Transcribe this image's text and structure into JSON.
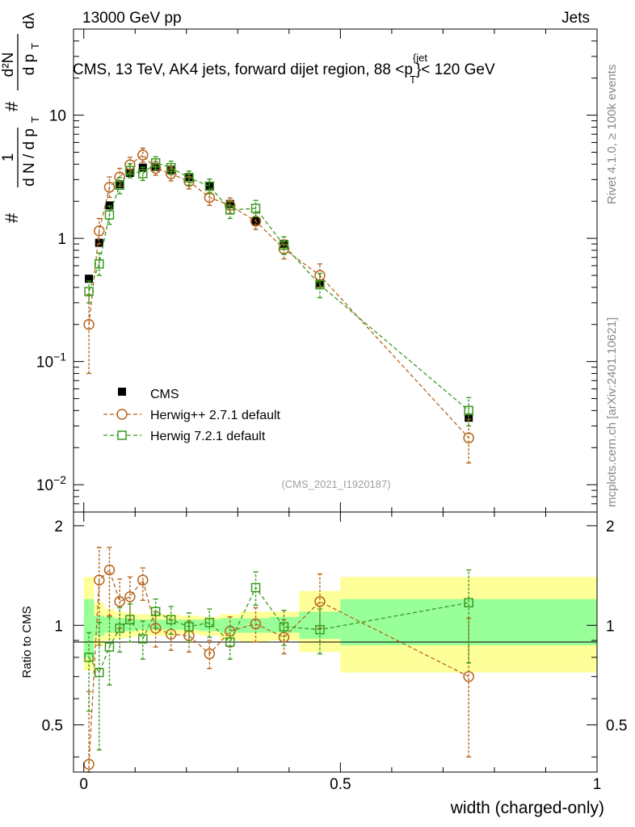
{
  "header": {
    "left": "13000 GeV pp",
    "right": "Jets"
  },
  "side_labels": {
    "rivet": "Rivet 4.1.0, ≥ 100k events",
    "mcplots": "mcplots.cern.ch [arXiv:2401.10621]"
  },
  "chart_data": [
    {
      "type": "scatter",
      "title_main": "CMS, 13 TeV, AK4 jets, forward dijet region, 88 <p",
      "title_sup": "{jet",
      "title_sub": "T",
      "title_end": "}< 120 GeV",
      "analysis_id": "(CMS_2021_I1920187)",
      "ylabel": "1/N dN/dp_T d^2N/(dp_T dlambda)",
      "yscale": "log",
      "xlim": [
        -0.02,
        1.0
      ],
      "ylim": [
        0.006,
        50
      ],
      "ytick_labels": [
        {
          "base": "10",
          "exp": "−2",
          "value": 0.01
        },
        {
          "base": "10",
          "exp": "−1",
          "value": 0.1
        },
        {
          "base": "1",
          "exp": "",
          "value": 1
        },
        {
          "base": "10",
          "exp": "",
          "value": 10
        }
      ],
      "legend": {
        "placement": "middle-left",
        "entries": [
          "CMS",
          "Herwig++ 2.7.1 default",
          "Herwig 7.2.1 default"
        ]
      },
      "series": [
        {
          "name": "CMS",
          "color": "#000000",
          "marker": "filled-square",
          "x": [
            0.01,
            0.03,
            0.05,
            0.07,
            0.09,
            0.115,
            0.14,
            0.17,
            0.205,
            0.245,
            0.285,
            0.335,
            0.39,
            0.46,
            0.75
          ],
          "y": [
            0.47,
            0.92,
            1.85,
            2.75,
            3.4,
            3.75,
            3.8,
            3.6,
            3.15,
            2.65,
            1.9,
            1.38,
            0.9,
            0.43,
            0.035
          ]
        },
        {
          "name": "Herwig++ 2.7.1 default",
          "color": "#b5651d",
          "marker": "open-circle",
          "x": [
            0.01,
            0.03,
            0.05,
            0.07,
            0.09,
            0.115,
            0.14,
            0.17,
            0.205,
            0.245,
            0.285,
            0.335,
            0.39,
            0.46,
            0.75
          ],
          "y": [
            0.2,
            1.15,
            2.6,
            3.15,
            3.95,
            4.75,
            3.7,
            3.35,
            2.9,
            2.15,
            1.85,
            1.38,
            0.82,
            0.5,
            0.024
          ],
          "err_lo": [
            0.12,
            0.25,
            0.45,
            0.5,
            0.55,
            0.6,
            0.45,
            0.42,
            0.38,
            0.3,
            0.25,
            0.2,
            0.14,
            0.1,
            0.009
          ],
          "err_hi": [
            0.15,
            0.3,
            0.55,
            0.55,
            0.6,
            0.65,
            0.5,
            0.45,
            0.42,
            0.32,
            0.28,
            0.22,
            0.15,
            0.12,
            0.01
          ]
        },
        {
          "name": "Herwig 7.2.1 default",
          "color": "#3a9a1f",
          "marker": "open-square",
          "x": [
            0.01,
            0.03,
            0.05,
            0.07,
            0.09,
            0.115,
            0.14,
            0.17,
            0.205,
            0.245,
            0.285,
            0.335,
            0.39,
            0.46,
            0.75
          ],
          "y": [
            0.37,
            0.62,
            1.55,
            2.7,
            3.55,
            3.35,
            4.1,
            3.75,
            3.1,
            2.65,
            1.7,
            1.75,
            0.88,
            0.42,
            0.04
          ],
          "err_lo": [
            0.07,
            0.12,
            0.25,
            0.4,
            0.45,
            0.4,
            0.5,
            0.45,
            0.4,
            0.35,
            0.25,
            0.25,
            0.14,
            0.09,
            0.01
          ],
          "err_hi": [
            0.08,
            0.14,
            0.28,
            0.42,
            0.48,
            0.42,
            0.5,
            0.48,
            0.42,
            0.38,
            0.28,
            0.28,
            0.15,
            0.1,
            0.011
          ]
        }
      ]
    },
    {
      "type": "scatter",
      "title": "Ratio to CMS",
      "ylabel": "Ratio to CMS",
      "xlabel": "width (charged-only)",
      "xlim": [
        -0.02,
        1.0
      ],
      "ylim": [
        0.36,
        2.2
      ],
      "yscale": "log",
      "xtick_labels": [
        "0",
        "0.5",
        "1"
      ],
      "ytick_labels": [
        "0.5",
        "1",
        "2"
      ],
      "bands": {
        "bins": [
          [
            0.0,
            0.02
          ],
          [
            0.02,
            0.04
          ],
          [
            0.04,
            0.06
          ],
          [
            0.06,
            0.08
          ],
          [
            0.08,
            0.1
          ],
          [
            0.1,
            0.13
          ],
          [
            0.13,
            0.155
          ],
          [
            0.155,
            0.185
          ],
          [
            0.185,
            0.225
          ],
          [
            0.225,
            0.265
          ],
          [
            0.265,
            0.305
          ],
          [
            0.305,
            0.36
          ],
          [
            0.36,
            0.42
          ],
          [
            0.42,
            0.5
          ],
          [
            0.5,
            1.0
          ]
        ],
        "green": [
          [
            0.8,
            1.2
          ],
          [
            0.93,
            1.07
          ],
          [
            0.95,
            1.06
          ],
          [
            0.96,
            1.05
          ],
          [
            0.96,
            1.05
          ],
          [
            0.97,
            1.04
          ],
          [
            0.97,
            1.04
          ],
          [
            0.97,
            1.04
          ],
          [
            0.97,
            1.04
          ],
          [
            0.96,
            1.04
          ],
          [
            0.95,
            1.05
          ],
          [
            0.95,
            1.05
          ],
          [
            0.95,
            1.06
          ],
          [
            0.91,
            1.1
          ],
          [
            0.87,
            1.2
          ]
        ],
        "yellow": [
          [
            0.73,
            1.4
          ],
          [
            0.87,
            1.17
          ],
          [
            0.9,
            1.12
          ],
          [
            0.91,
            1.1
          ],
          [
            0.92,
            1.09
          ],
          [
            0.93,
            1.08
          ],
          [
            0.93,
            1.08
          ],
          [
            0.93,
            1.08
          ],
          [
            0.94,
            1.07
          ],
          [
            0.93,
            1.06
          ],
          [
            0.9,
            1.08
          ],
          [
            0.89,
            1.1
          ],
          [
            0.9,
            1.1
          ],
          [
            0.83,
            1.27
          ],
          [
            0.72,
            1.4
          ]
        ]
      },
      "series": [
        {
          "name": "Herwig++ 2.7.1 default",
          "color": "#b5651d",
          "x": [
            0.01,
            0.03,
            0.05,
            0.07,
            0.09,
            0.115,
            0.14,
            0.17,
            0.205,
            0.245,
            0.285,
            0.335,
            0.39,
            0.46,
            0.75
          ],
          "y": [
            0.38,
            1.37,
            1.47,
            1.18,
            1.22,
            1.37,
            0.98,
            0.94,
            0.93,
            0.82,
            0.96,
            1.01,
            0.92,
            1.18,
            0.7
          ],
          "err_lo": [
            0.2,
            0.5,
            0.4,
            0.2,
            0.18,
            0.18,
            0.12,
            0.1,
            0.1,
            0.08,
            0.1,
            0.12,
            0.1,
            0.2,
            0.3
          ],
          "err_hi": [
            0.25,
            0.35,
            0.25,
            0.2,
            0.18,
            0.12,
            0.12,
            0.1,
            0.1,
            0.08,
            0.1,
            0.12,
            0.12,
            0.25,
            0.35
          ]
        },
        {
          "name": "Herwig 7.2.1 default",
          "color": "#3a9a1f",
          "x": [
            0.01,
            0.03,
            0.05,
            0.07,
            0.09,
            0.115,
            0.14,
            0.17,
            0.205,
            0.245,
            0.285,
            0.335,
            0.39,
            0.46,
            0.75
          ],
          "y": [
            0.8,
            0.72,
            0.86,
            0.98,
            1.04,
            0.91,
            1.1,
            1.04,
            0.99,
            1.02,
            0.89,
            1.3,
            0.99,
            0.97,
            1.17
          ],
          "err_lo": [
            0.25,
            0.3,
            0.2,
            0.15,
            0.15,
            0.12,
            0.12,
            0.1,
            0.1,
            0.1,
            0.1,
            0.15,
            0.12,
            0.15,
            0.4
          ],
          "err_hi": [
            0.15,
            0.3,
            0.2,
            0.15,
            0.12,
            0.12,
            0.1,
            0.1,
            0.1,
            0.1,
            0.1,
            0.15,
            0.12,
            0.15,
            0.3
          ]
        }
      ]
    }
  ]
}
